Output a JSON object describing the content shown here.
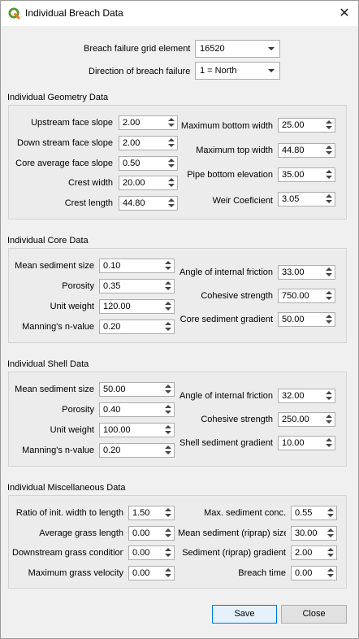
{
  "window": {
    "title": "Individual Breach Data"
  },
  "top": {
    "grid_label": "Breach failure grid element",
    "grid_value": "16520",
    "direction_label": "Direction of breach failure",
    "direction_value": "1 = North"
  },
  "geometry": {
    "title": "Individual Geometry Data",
    "upstream_label": "Upstream face slope",
    "upstream_value": "2.00",
    "downstream_label": "Down stream face slope",
    "downstream_value": "2.00",
    "core_slope_label": "Core average face slope",
    "core_slope_value": "0.50",
    "crest_width_label": "Crest width",
    "crest_width_value": "20.00",
    "crest_length_label": "Crest length",
    "crest_length_value": "44.80",
    "max_bottom_label": "Maximum bottom width",
    "max_bottom_value": "25.00",
    "max_top_label": "Maximum top width",
    "max_top_value": "44.80",
    "pipe_label": "Pipe bottom elevation",
    "pipe_value": "35.00",
    "weir_label": "Weir Coeficient",
    "weir_value": "3.05"
  },
  "core": {
    "title": "Individual Core Data",
    "sed_size_label": "Mean sediment size",
    "sed_size_value": "0.10",
    "porosity_label": "Porosity",
    "porosity_value": "0.35",
    "unit_weight_label": "Unit weight",
    "unit_weight_value": "120.00",
    "manning_label": "Manning's n-value",
    "manning_value": "0.20",
    "friction_label": "Angle of internal friction",
    "friction_value": "33.00",
    "cohesive_label": "Cohesive strength",
    "cohesive_value": "750.00",
    "gradient_label": "Core sediment gradient",
    "gradient_value": "50.00"
  },
  "shell": {
    "title": "Individual Shell Data",
    "sed_size_label": "Mean sediment size",
    "sed_size_value": "50.00",
    "porosity_label": "Porosity",
    "porosity_value": "0.40",
    "unit_weight_label": "Unit weight",
    "unit_weight_value": "100.00",
    "manning_label": "Manning's n-value",
    "manning_value": "0.20",
    "friction_label": "Angle of internal friction",
    "friction_value": "32.00",
    "cohesive_label": "Cohesive strength",
    "cohesive_value": "250.00",
    "gradient_label": "Shell sediment gradient",
    "gradient_value": "10.00"
  },
  "misc": {
    "title": "Individual Miscellaneous Data",
    "ratio_label": "Ratio of init. width to length",
    "ratio_value": "1.50",
    "grass_length_label": "Average grass length",
    "grass_length_value": "0.00",
    "grass_cond_label": "Downstream grass condition",
    "grass_cond_value": "0.00",
    "grass_vel_label": "Maximum grass velocity",
    "grass_vel_value": "0.00",
    "max_conc_label": "Max. sediment conc.",
    "max_conc_value": "0.55",
    "riprap_size_label": "Mean sediment (riprap) size",
    "riprap_size_value": "30.00",
    "riprap_grad_label": "Sediment (riprap) gradient",
    "riprap_grad_value": "2.00",
    "breach_time_label": "Breach time",
    "breach_time_value": "0.00"
  },
  "buttons": {
    "save": "Save",
    "close": "Close"
  }
}
